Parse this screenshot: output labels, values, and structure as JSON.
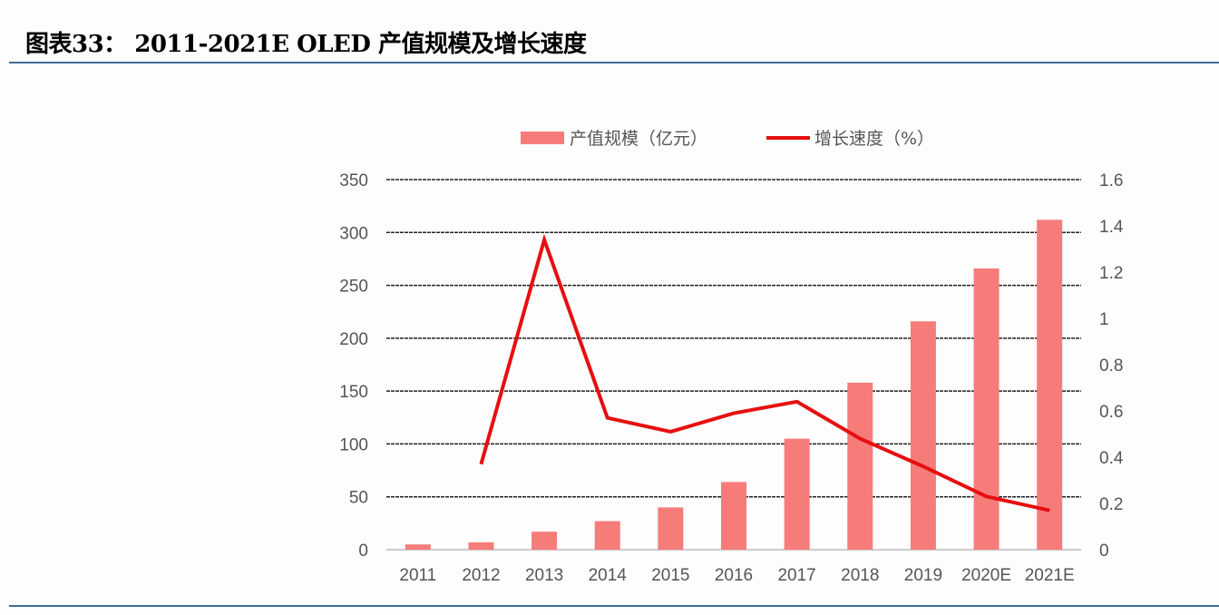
{
  "title": "图表33：  2011-2021E OLED 产值规模及增长速度",
  "chart_data": {
    "type": "bar+line",
    "categories": [
      "2011",
      "2012",
      "2013",
      "2014",
      "2015",
      "2016",
      "2017",
      "2018",
      "2019",
      "2020E",
      "2021E"
    ],
    "series": [
      {
        "name": "产值规模（亿元）",
        "type": "bar",
        "axis": "left",
        "color": "#f67c7a",
        "values": [
          5,
          7,
          17,
          27,
          40,
          64,
          105,
          158,
          216,
          266,
          312
        ]
      },
      {
        "name": "增长速度（%）",
        "type": "line",
        "axis": "right",
        "color": "#e60f0f",
        "values": [
          null,
          0.37,
          1.34,
          0.57,
          0.51,
          0.59,
          0.64,
          0.48,
          0.36,
          0.23,
          0.17
        ]
      }
    ],
    "left_axis": {
      "ylim": [
        0,
        350
      ],
      "ticks": [
        "0",
        "50",
        "100",
        "150",
        "200",
        "250",
        "300",
        "350"
      ]
    },
    "right_axis": {
      "ylim": [
        0,
        1.6
      ],
      "ticks": [
        "0",
        "0.2",
        "0.4",
        "0.6",
        "0.8",
        "1",
        "1.2",
        "1.4",
        "1.6"
      ]
    },
    "grid": true,
    "legend": "top"
  }
}
